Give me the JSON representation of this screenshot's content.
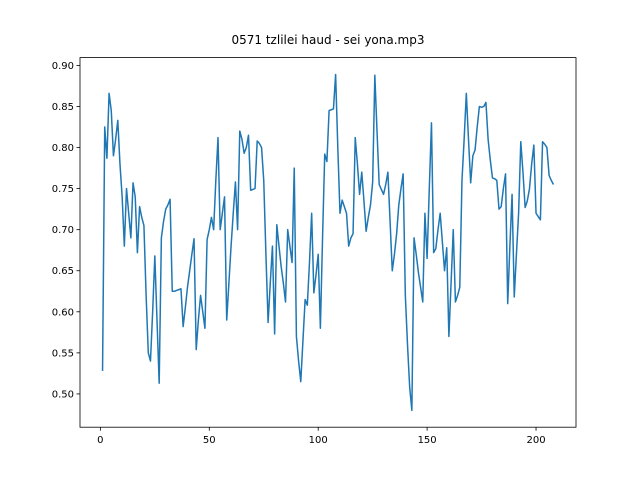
{
  "chart_data": {
    "type": "line",
    "title": "0571 tzlilei haud - sei yona.mp3",
    "color": "#1f77b4",
    "x": [
      1,
      2,
      3,
      4,
      5,
      6,
      7,
      8,
      9,
      10,
      11,
      12,
      13,
      14,
      15,
      16,
      17,
      18,
      19,
      20,
      21,
      22,
      23,
      24,
      25,
      26,
      27,
      28,
      29,
      30,
      31,
      32,
      33,
      34,
      35,
      36,
      37,
      38,
      39,
      40,
      41,
      42,
      43,
      44,
      45,
      46,
      47,
      48,
      49,
      50,
      51,
      52,
      53,
      54,
      55,
      56,
      57,
      58,
      59,
      60,
      61,
      62,
      63,
      64,
      65,
      66,
      67,
      68,
      69,
      70,
      71,
      72,
      73,
      74,
      75,
      76,
      77,
      78,
      79,
      80,
      81,
      82,
      83,
      84,
      85,
      86,
      87,
      88,
      89,
      90,
      91,
      92,
      93,
      94,
      95,
      96,
      97,
      98,
      99,
      100,
      101,
      102,
      103,
      104,
      105,
      106,
      107,
      108,
      109,
      110,
      111,
      112,
      113,
      114,
      115,
      116,
      117,
      118,
      119,
      120,
      121,
      122,
      123,
      124,
      125,
      126,
      127,
      128,
      129,
      130,
      131,
      132,
      133,
      134,
      135,
      136,
      137,
      138,
      139,
      140,
      141,
      142,
      143,
      144,
      145,
      146,
      147,
      148,
      149,
      150,
      151,
      152,
      153,
      154,
      155,
      156,
      157,
      158,
      159,
      160,
      161,
      162,
      163,
      164,
      165,
      166,
      167,
      168,
      169,
      170,
      171,
      172,
      173,
      174,
      175,
      176,
      177,
      178,
      179,
      180,
      181,
      182,
      183,
      184,
      185,
      186,
      187,
      188,
      189,
      190,
      191,
      192,
      193,
      194,
      195,
      196,
      197,
      198,
      199,
      200,
      201,
      202,
      203,
      204,
      205,
      206,
      207,
      208
    ],
    "values": [
      0.528,
      0.825,
      0.787,
      0.866,
      0.845,
      0.79,
      0.81,
      0.833,
      0.78,
      0.74,
      0.68,
      0.75,
      0.72,
      0.69,
      0.757,
      0.74,
      0.672,
      0.728,
      0.715,
      0.705,
      0.62,
      0.55,
      0.54,
      0.6,
      0.668,
      0.59,
      0.513,
      0.69,
      0.71,
      0.725,
      0.73,
      0.737,
      0.625,
      0.625,
      0.626,
      0.627,
      0.628,
      0.582,
      0.605,
      0.63,
      0.65,
      0.67,
      0.689,
      0.554,
      0.59,
      0.62,
      0.6,
      0.58,
      0.688,
      0.7,
      0.715,
      0.7,
      0.76,
      0.812,
      0.7,
      0.72,
      0.74,
      0.59,
      0.635,
      0.68,
      0.72,
      0.758,
      0.7,
      0.82,
      0.81,
      0.793,
      0.8,
      0.815,
      0.748,
      0.749,
      0.75,
      0.808,
      0.805,
      0.8,
      0.76,
      0.67,
      0.587,
      0.635,
      0.68,
      0.573,
      0.706,
      0.68,
      0.655,
      0.635,
      0.612,
      0.7,
      0.68,
      0.66,
      0.775,
      0.57,
      0.54,
      0.515,
      0.565,
      0.615,
      0.608,
      0.66,
      0.72,
      0.623,
      0.645,
      0.67,
      0.58,
      0.69,
      0.792,
      0.783,
      0.845,
      0.846,
      0.847,
      0.889,
      0.8,
      0.72,
      0.736,
      0.728,
      0.72,
      0.68,
      0.69,
      0.695,
      0.812,
      0.78,
      0.743,
      0.77,
      0.735,
      0.698,
      0.715,
      0.73,
      0.758,
      0.888,
      0.82,
      0.755,
      0.749,
      0.743,
      0.755,
      0.77,
      0.71,
      0.65,
      0.67,
      0.695,
      0.73,
      0.75,
      0.768,
      0.62,
      0.56,
      0.508,
      0.48,
      0.69,
      0.67,
      0.648,
      0.63,
      0.612,
      0.72,
      0.665,
      0.75,
      0.83,
      0.672,
      0.677,
      0.7,
      0.72,
      0.685,
      0.65,
      0.678,
      0.57,
      0.635,
      0.7,
      0.612,
      0.62,
      0.63,
      0.76,
      0.81,
      0.866,
      0.81,
      0.757,
      0.79,
      0.797,
      0.825,
      0.85,
      0.849,
      0.85,
      0.855,
      0.81,
      0.785,
      0.763,
      0.762,
      0.76,
      0.725,
      0.728,
      0.75,
      0.768,
      0.61,
      0.68,
      0.743,
      0.618,
      0.67,
      0.72,
      0.807,
      0.77,
      0.727,
      0.735,
      0.75,
      0.78,
      0.803,
      0.72,
      0.716,
      0.712,
      0.807,
      0.804,
      0.8,
      0.766,
      0.76,
      0.755
    ],
    "xlim": [
      -9.35,
      218.35
    ],
    "xticks": [
      0,
      50,
      100,
      150,
      200
    ],
    "ylim": [
      0.4595,
      0.9095
    ],
    "yticks": [
      {
        "value": 0.5,
        "label": "0.50"
      },
      0.55,
      {
        "value": 0.6,
        "label": "0.60"
      },
      0.65,
      {
        "value": 0.7,
        "label": "0.70"
      },
      0.75,
      {
        "value": 0.8,
        "label": "0.80"
      },
      0.85,
      {
        "value": 0.9,
        "label": "0.90"
      }
    ],
    "grid": false
  }
}
